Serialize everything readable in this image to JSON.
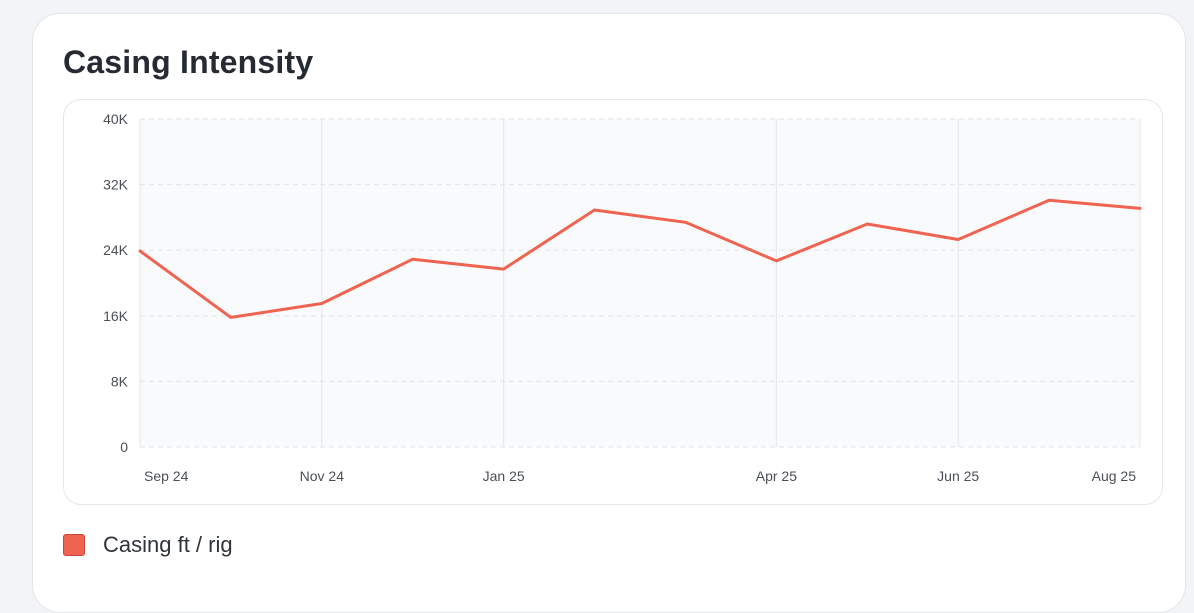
{
  "card": {
    "title": "Casing Intensity"
  },
  "chart_data": {
    "type": "line",
    "title": "Casing Intensity",
    "xlabel": "",
    "ylabel": "",
    "x": [
      "Sep 24",
      "Oct 24",
      "Nov 24",
      "Dec 24",
      "Jan 25",
      "Feb 25",
      "Mar 25",
      "Apr 25",
      "May 25",
      "Jun 25",
      "Jul 25",
      "Aug 25"
    ],
    "x_tick_labels": [
      "Sep 24",
      "Nov 24",
      "Jan 25",
      "Apr 25",
      "Jun 25",
      "Aug 25"
    ],
    "y_ticks": [
      0,
      8000,
      16000,
      24000,
      32000,
      40000
    ],
    "y_tick_labels": [
      "0",
      "8K",
      "16K",
      "24K",
      "32K",
      "40K"
    ],
    "ylim": [
      0,
      40000
    ],
    "grid": true,
    "legend_position": "bottom-left",
    "series": [
      {
        "name": "Casing ft / rig",
        "color": "#ef6450",
        "values": [
          23900,
          15800,
          17500,
          22900,
          21700,
          28900,
          27400,
          22700,
          27200,
          25300,
          30100,
          29100
        ]
      }
    ]
  },
  "legend": {
    "items": [
      {
        "label": "Casing ft / rig",
        "color": "#ef6450"
      }
    ]
  },
  "colors": {
    "line": "#ef6450",
    "plot_background": "#f9fafc",
    "grid": "#e2e6ed",
    "tick_text": "#4a4f57"
  }
}
